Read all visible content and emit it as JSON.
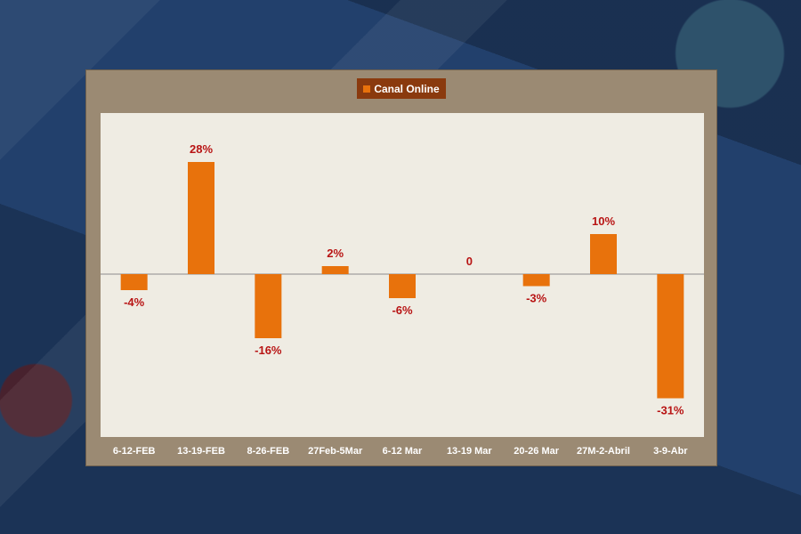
{
  "chart_data": {
    "type": "bar",
    "categories": [
      "6-12-FEB",
      "13-19-FEB",
      "8-26-FEB",
      "27Feb-5Mar",
      "6-12 Mar",
      "13-19 Mar",
      "20-26 Mar",
      "27M-2-Abril",
      "3-9-Abr"
    ],
    "series": [
      {
        "name": "Canal Online",
        "values": [
          -4,
          28,
          -16,
          2,
          -6,
          0,
          -3,
          10,
          -31
        ]
      }
    ],
    "data_labels": [
      "-4%",
      "28%",
      "-16%",
      "2%",
      "-6%",
      "0",
      "-3%",
      "10%",
      "-31%"
    ],
    "ylim": [
      -40,
      40
    ],
    "legend_position": "top-center",
    "grid": false,
    "colors": {
      "bar": "#e8720c",
      "label": "#b81414",
      "panel": "#9b8a73",
      "plot_bg": "#efece3",
      "legend_bg": "#8a3a0e"
    }
  },
  "legend": {
    "label": "Canal Online"
  }
}
